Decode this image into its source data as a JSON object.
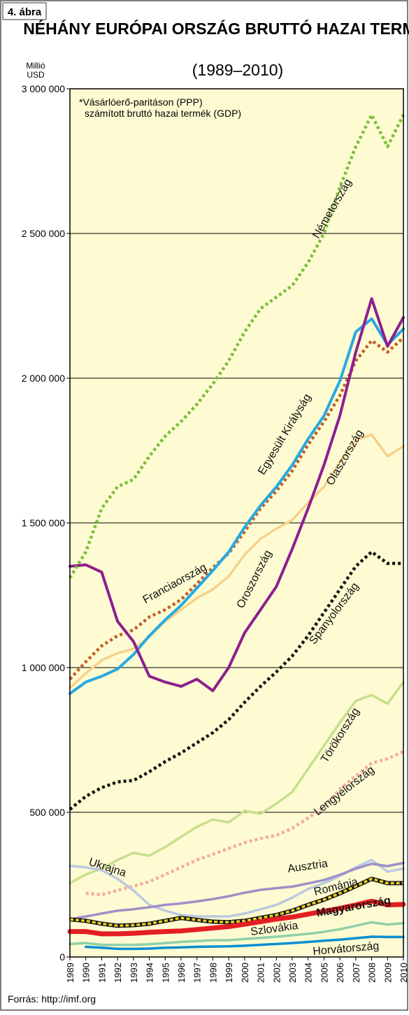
{
  "figure_label": "4. ábra",
  "source": "Forrás: http://imf.org",
  "colors": {
    "plot_bg": "#fefbd2",
    "grid": "#000000",
    "Németország": "#7bbf3c",
    "Egyesült Királyság": "#c0622a",
    "Franciaország": "#27a9e1",
    "Olaszország": "#f6d18b",
    "Oroszország": "#8e1f8e",
    "Spanyolország": "#111111",
    "Törökország": "#c6df8c",
    "Lengyelország": "#f5aaa0",
    "Ukrajna": "#bcc9de",
    "Ausztria": "#9f8ec8",
    "Románia": "#e6d020",
    "Magyarország": "#e31e24",
    "Szlovákia": "#8fd0a8",
    "Horvátország": "#0a8ed0"
  },
  "chart_data": {
    "type": "line",
    "title": "NÉHÁNY EURÓPAI ORSZÁG BRUTTÓ HAZAI TERMÉKE*",
    "subtitle": "(1989–2010)",
    "ylabel": "Millió USD",
    "ylabel_line1": "Millió",
    "ylabel_line2": "USD",
    "footnote_line1": "*Vásárlóerő-paritáson (PPP)",
    "footnote_line2": "számított bruttó hazai termék (GDP)",
    "ylim": [
      0,
      3000000
    ],
    "yticks": [
      0,
      500000,
      1000000,
      1500000,
      2000000,
      2500000,
      3000000
    ],
    "ytick_labels": [
      "0",
      "500 000",
      "1 000 000",
      "1 500 000",
      "2 000 000",
      "2 500 000",
      "3 000 000"
    ],
    "grid": true,
    "x": [
      1989,
      1990,
      1991,
      1992,
      1993,
      1994,
      1995,
      1996,
      1997,
      1998,
      1999,
      2000,
      2001,
      2002,
      2003,
      2004,
      2005,
      2006,
      2007,
      2008,
      2009,
      2010
    ],
    "xtick_labels": [
      "1989",
      "1990",
      "1991",
      "1992",
      "1993",
      "1994",
      "1995",
      "1996",
      "1997",
      "1998",
      "1999",
      "2000",
      "2001",
      "2002",
      "2003",
      "2004",
      "2005",
      "2006",
      "2007",
      "2008",
      "2009",
      "2010"
    ],
    "series": [
      {
        "name": "Németország",
        "style": "dotted",
        "values": [
          1310000,
          1400000,
          1550000,
          1625000,
          1650000,
          1730000,
          1800000,
          1850000,
          1910000,
          1980000,
          2060000,
          2160000,
          2240000,
          2280000,
          2320000,
          2400000,
          2500000,
          2660000,
          2800000,
          2910000,
          2800000,
          2910000
        ]
      },
      {
        "name": "Egyesült Királyság",
        "style": "dotted",
        "values": [
          960000,
          1020000,
          1075000,
          1110000,
          1130000,
          1175000,
          1200000,
          1235000,
          1290000,
          1345000,
          1395000,
          1470000,
          1550000,
          1610000,
          1680000,
          1770000,
          1850000,
          1940000,
          2060000,
          2130000,
          2090000,
          2140000
        ]
      },
      {
        "name": "Franciaország",
        "style": "solid",
        "values": [
          910000,
          950000,
          970000,
          995000,
          1045000,
          1110000,
          1165000,
          1215000,
          1275000,
          1335000,
          1400000,
          1485000,
          1560000,
          1625000,
          1700000,
          1790000,
          1870000,
          1990000,
          2160000,
          2205000,
          2115000,
          2170000
        ]
      },
      {
        "name": "Olaszország",
        "style": "solid",
        "values": [
          930000,
          980000,
          1025000,
          1050000,
          1065000,
          1105000,
          1160000,
          1200000,
          1240000,
          1270000,
          1315000,
          1390000,
          1445000,
          1480000,
          1510000,
          1570000,
          1625000,
          1710000,
          1785000,
          1805000,
          1730000,
          1765000
        ]
      },
      {
        "name": "Oroszország",
        "style": "solid",
        "values": [
          1350000,
          1355000,
          1330000,
          1160000,
          1090000,
          970000,
          950000,
          935000,
          960000,
          920000,
          1000000,
          1120000,
          1200000,
          1280000,
          1410000,
          1550000,
          1700000,
          1870000,
          2090000,
          2275000,
          2110000,
          2210000
        ]
      },
      {
        "name": "Spanyolország",
        "style": "dotted",
        "values": [
          510000,
          555000,
          585000,
          605000,
          610000,
          640000,
          675000,
          705000,
          740000,
          775000,
          820000,
          880000,
          935000,
          985000,
          1040000,
          1110000,
          1190000,
          1270000,
          1350000,
          1400000,
          1360000,
          1360000
        ]
      },
      {
        "name": "Törökország",
        "style": "solid",
        "values": [
          255000,
          285000,
          305000,
          335000,
          360000,
          350000,
          380000,
          415000,
          450000,
          475000,
          465000,
          505000,
          495000,
          530000,
          570000,
          650000,
          730000,
          810000,
          885000,
          905000,
          875000,
          950000
        ]
      },
      {
        "name": "Lengyelország",
        "style": "dotted",
        "values": [
          null,
          220000,
          215000,
          230000,
          245000,
          260000,
          285000,
          310000,
          335000,
          355000,
          375000,
          395000,
          410000,
          420000,
          445000,
          480000,
          520000,
          580000,
          625000,
          670000,
          685000,
          710000
        ]
      },
      {
        "name": "Ukrajna",
        "style": "solid",
        "values": [
          315000,
          310000,
          300000,
          270000,
          230000,
          180000,
          160000,
          145000,
          140000,
          140000,
          140000,
          150000,
          165000,
          180000,
          205000,
          235000,
          255000,
          280000,
          310000,
          335000,
          295000,
          305000
        ]
      },
      {
        "name": "Ausztria",
        "style": "solid",
        "values": [
          130000,
          140000,
          150000,
          160000,
          165000,
          172000,
          180000,
          185000,
          192000,
          200000,
          210000,
          222000,
          232000,
          238000,
          243000,
          254000,
          266000,
          284000,
          305000,
          322000,
          314000,
          325000
        ]
      },
      {
        "name": "Románia",
        "style": "dashed",
        "values": [
          130000,
          125000,
          115000,
          108000,
          110000,
          115000,
          125000,
          135000,
          128000,
          122000,
          120000,
          125000,
          135000,
          145000,
          160000,
          180000,
          198000,
          220000,
          245000,
          270000,
          255000,
          255000
        ]
      },
      {
        "name": "Magyarország",
        "style": "solid",
        "values": [
          88000,
          88000,
          80000,
          80000,
          82000,
          85000,
          88000,
          90000,
          95000,
          100000,
          105000,
          113000,
          122000,
          131000,
          138000,
          148000,
          158000,
          168000,
          180000,
          193000,
          180000,
          182000
        ]
      },
      {
        "name": "Szlovákia",
        "style": "solid",
        "values": [
          45000,
          48000,
          42000,
          42000,
          42000,
          44000,
          48000,
          52000,
          55000,
          58000,
          58000,
          62000,
          66000,
          70000,
          75000,
          80000,
          87000,
          96000,
          108000,
          120000,
          112000,
          117000
        ]
      },
      {
        "name": "Horvátország",
        "style": "solid",
        "values": [
          null,
          35000,
          32000,
          28000,
          28000,
          29000,
          32000,
          33000,
          35000,
          36000,
          37000,
          39000,
          42000,
          45000,
          48000,
          52000,
          56000,
          60000,
          65000,
          70000,
          69000,
          69000
        ]
      }
    ],
    "annotations": [
      {
        "text": "Németország",
        "x": 2005.7,
        "y": 2580000,
        "angle": -60
      },
      {
        "text": "Egyesült Királyság",
        "x": 2002.7,
        "y": 1800000,
        "angle": -59
      },
      {
        "text": "Olaszország",
        "x": 2006.5,
        "y": 1720000,
        "angle": -60
      },
      {
        "text": "Franciaország",
        "x": 1995.7,
        "y": 1280000,
        "angle": -29
      },
      {
        "text": "Oroszország",
        "x": 2000.8,
        "y": 1300000,
        "angle": -63
      },
      {
        "text": "Spanyolország",
        "x": 2005.8,
        "y": 1180000,
        "angle": -53
      },
      {
        "text": "Törökország",
        "x": 2006.2,
        "y": 760000,
        "angle": -58
      },
      {
        "text": "Lengyelország",
        "x": 2006.4,
        "y": 565000,
        "angle": -38
      },
      {
        "text": "Ukrajna",
        "x": 1991.3,
        "y": 298000,
        "angle": 18
      },
      {
        "text": "Ausztria",
        "x": 2004.0,
        "y": 302000,
        "angle": -8
      },
      {
        "text": "Románia",
        "x": 2005.8,
        "y": 231000,
        "angle": -14
      },
      {
        "text": "Magyarország",
        "x": 2006.9,
        "y": 162000,
        "angle": -10
      },
      {
        "text": "Szlovákia",
        "x": 2001.9,
        "y": 86000,
        "angle": -8
      },
      {
        "text": "Horvátország",
        "x": 2006.4,
        "y": 17000,
        "angle": -5
      }
    ]
  }
}
